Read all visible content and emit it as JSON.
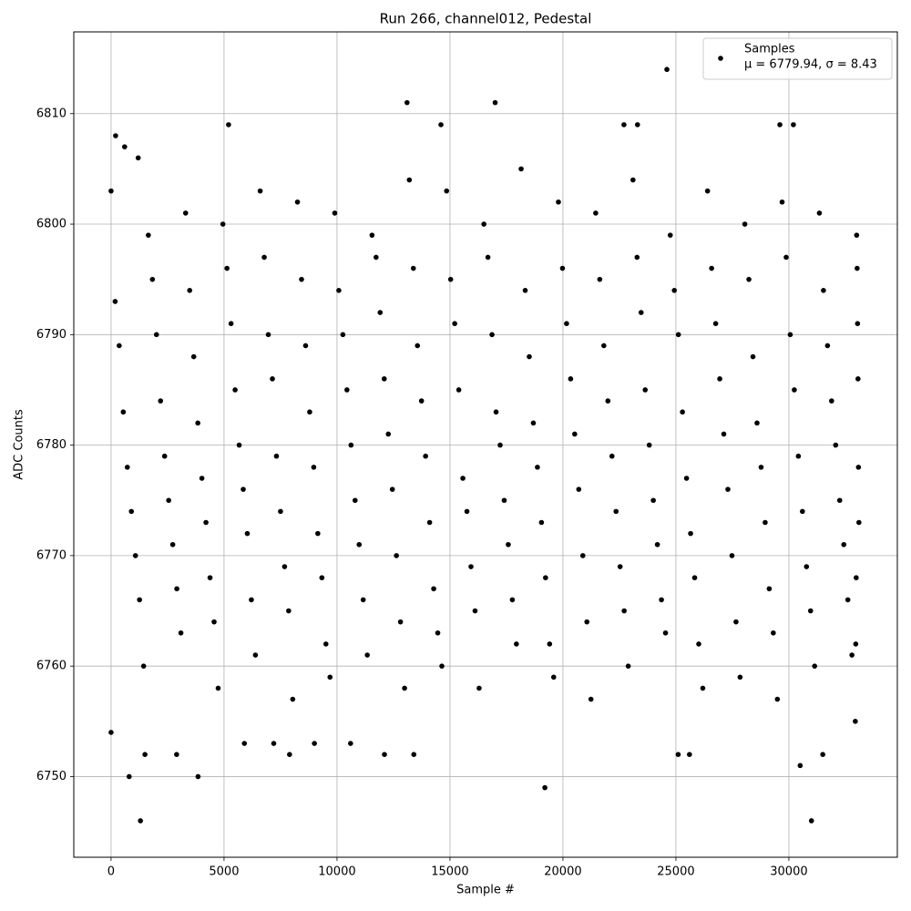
{
  "chart_data": {
    "type": "scatter",
    "title": "Run 266, channel012, Pedestal",
    "x_label": "Sample #",
    "y_label": "ADC Counts",
    "xlim": [
      -1650,
      34800
    ],
    "ylim": [
      6742.7,
      6817.4
    ],
    "xticks": [
      0,
      5000,
      10000,
      15000,
      20000,
      25000,
      30000
    ],
    "yticks": [
      6750,
      6760,
      6770,
      6780,
      6790,
      6800,
      6810
    ],
    "grid": true,
    "legend": "upper right",
    "legend_note": "μ = 6779.94, σ = 8.43",
    "series": [
      {
        "name": "Samples",
        "color": "#000000",
        "x": [
          0,
          180,
          360,
          540,
          720,
          900,
          1080,
          1260,
          1440,
          1650,
          1830,
          2010,
          2190,
          2370,
          2550,
          2730,
          2910,
          3090,
          3300,
          3480,
          3660,
          3840,
          4020,
          4200,
          4380,
          4560,
          4740,
          4950,
          5130,
          5310,
          5490,
          5670,
          5850,
          6030,
          6210,
          6390,
          6600,
          6780,
          6960,
          7140,
          7320,
          7500,
          7680,
          7860,
          8040,
          8250,
          8430,
          8610,
          8790,
          8970,
          9150,
          9330,
          9510,
          9690,
          9900,
          10080,
          10260,
          10440,
          10620,
          10800,
          10980,
          11160,
          11340,
          11550,
          11730,
          11910,
          12090,
          12270,
          12450,
          12630,
          12810,
          12990,
          13200,
          13380,
          13560,
          13740,
          13920,
          14100,
          14280,
          14460,
          14640,
          14850,
          15030,
          15210,
          15390,
          15570,
          15750,
          15930,
          16110,
          16290,
          16500,
          16680,
          16860,
          17040,
          17220,
          17400,
          17580,
          17760,
          17940,
          18150,
          18330,
          18510,
          18690,
          18870,
          19050,
          19230,
          19410,
          19590,
          19800,
          19980,
          20160,
          20340,
          20520,
          20700,
          20880,
          21060,
          21240,
          21450,
          21630,
          21810,
          21990,
          22170,
          22350,
          22530,
          22710,
          22890,
          23100,
          23280,
          23460,
          23640,
          23820,
          24000,
          24180,
          24360,
          24540,
          24750,
          24930,
          25110,
          25290,
          25470,
          25650,
          25830,
          26010,
          26190,
          26400,
          26580,
          26760,
          26940,
          27120,
          27300,
          27480,
          27660,
          27840,
          28050,
          28230,
          28410,
          28590,
          28770,
          28950,
          29130,
          29310,
          29490,
          29700,
          29880,
          30060,
          30240,
          30420,
          30600,
          30780,
          30960,
          31140,
          31350,
          31530,
          31710,
          31890,
          32070,
          32250,
          32430,
          32610,
          32790,
          33000,
          33020,
          33040,
          33060,
          33080,
          33100,
          32980,
          32960,
          32940,
          1300,
          31000,
          19200,
          800,
          3850,
          24600,
          13100,
          17000,
          5200,
          14600,
          22700,
          23300,
          29600,
          30200,
          200,
          1200,
          600,
          2900,
          7900,
          12100,
          13400,
          25100,
          25600,
          31500,
          30500,
          0,
          1500,
          5900,
          7200,
          9000,
          10600
        ],
        "values": [
          6803,
          6793,
          6789,
          6783,
          6778,
          6774,
          6770,
          6766,
          6760,
          6799,
          6795,
          6790,
          6784,
          6779,
          6775,
          6771,
          6767,
          6763,
          6801,
          6794,
          6788,
          6782,
          6777,
          6773,
          6768,
          6764,
          6758,
          6800,
          6796,
          6791,
          6785,
          6780,
          6776,
          6772,
          6766,
          6761,
          6803,
          6797,
          6790,
          6786,
          6779,
          6774,
          6769,
          6765,
          6757,
          6802,
          6795,
          6789,
          6783,
          6778,
          6772,
          6768,
          6762,
          6759,
          6801,
          6794,
          6790,
          6785,
          6780,
          6775,
          6771,
          6766,
          6761,
          6799,
          6797,
          6792,
          6786,
          6781,
          6776,
          6770,
          6764,
          6758,
          6804,
          6796,
          6789,
          6784,
          6779,
          6773,
          6767,
          6763,
          6760,
          6803,
          6795,
          6791,
          6785,
          6777,
          6774,
          6769,
          6765,
          6758,
          6800,
          6797,
          6790,
          6783,
          6780,
          6775,
          6771,
          6766,
          6762,
          6805,
          6794,
          6788,
          6782,
          6778,
          6773,
          6768,
          6762,
          6759,
          6802,
          6796,
          6791,
          6786,
          6781,
          6776,
          6770,
          6764,
          6757,
          6801,
          6795,
          6789,
          6784,
          6779,
          6774,
          6769,
          6765,
          6760,
          6804,
          6797,
          6792,
          6785,
          6780,
          6775,
          6771,
          6766,
          6763,
          6799,
          6794,
          6790,
          6783,
          6777,
          6772,
          6768,
          6762,
          6758,
          6803,
          6796,
          6791,
          6786,
          6781,
          6776,
          6770,
          6764,
          6759,
          6800,
          6795,
          6788,
          6782,
          6778,
          6773,
          6767,
          6763,
          6757,
          6802,
          6797,
          6790,
          6785,
          6779,
          6774,
          6769,
          6765,
          6760,
          6801,
          6794,
          6789,
          6784,
          6780,
          6775,
          6771,
          6766,
          6761,
          6799,
          6796,
          6791,
          6786,
          6778,
          6773,
          6768,
          6762,
          6755,
          6746,
          6746,
          6749,
          6750,
          6750,
          6814,
          6811,
          6811,
          6809,
          6809,
          6809,
          6809,
          6809,
          6809,
          6808,
          6806,
          6807,
          6752,
          6752,
          6752,
          6752,
          6752,
          6752,
          6752,
          6751,
          6754,
          6752,
          6753,
          6753,
          6753,
          6753
        ]
      }
    ]
  }
}
